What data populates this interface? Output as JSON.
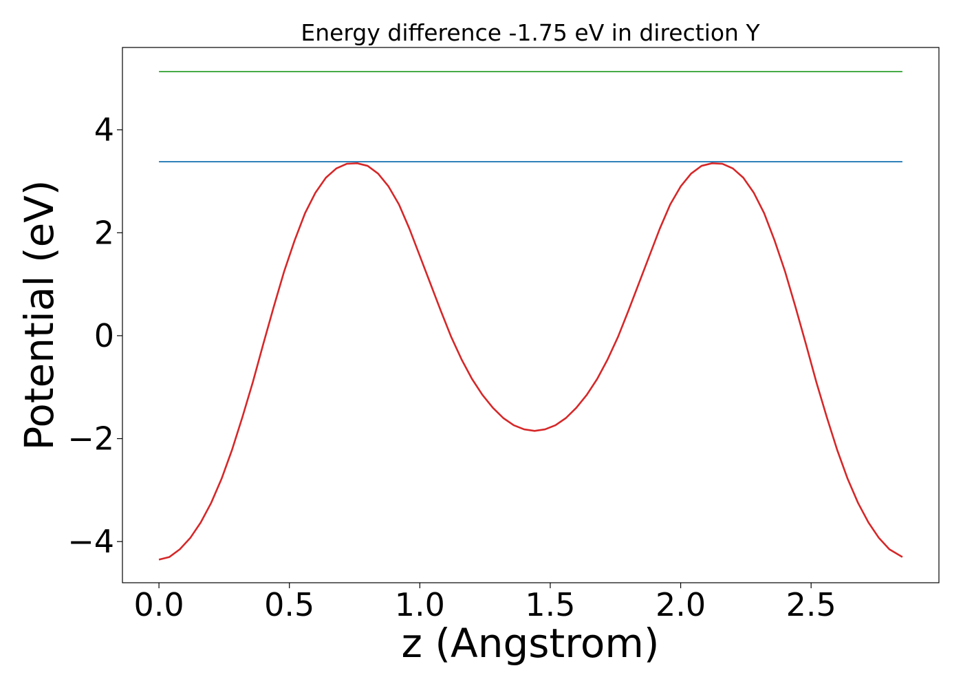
{
  "chart_data": {
    "type": "line",
    "title": "Energy difference -1.75 eV in direction Y",
    "xlabel": "z (Angstrom)",
    "ylabel": "Potential (eV)",
    "xlim": [
      -0.14,
      2.99
    ],
    "ylim": [
      -4.8,
      5.6
    ],
    "xticks": [
      0.0,
      0.5,
      1.0,
      1.5,
      2.0,
      2.5
    ],
    "xtick_labels": [
      "0.0",
      "0.5",
      "1.0",
      "1.5",
      "2.0",
      "2.5"
    ],
    "yticks": [
      -4,
      -2,
      0,
      2,
      4
    ],
    "ytick_labels": [
      "−4",
      "−2",
      "0",
      "2",
      "4"
    ],
    "grid": false,
    "legend": "none",
    "series": [
      {
        "color": "#d62728",
        "x": [
          0.0,
          0.04,
          0.08,
          0.12,
          0.16,
          0.2,
          0.24,
          0.28,
          0.32,
          0.36,
          0.4,
          0.44,
          0.48,
          0.52,
          0.56,
          0.6,
          0.64,
          0.68,
          0.72,
          0.76,
          0.8,
          0.84,
          0.88,
          0.92,
          0.96,
          1.0,
          1.04,
          1.08,
          1.12,
          1.16,
          1.2,
          1.24,
          1.28,
          1.32,
          1.36,
          1.4,
          1.44,
          1.48,
          1.52,
          1.56,
          1.6,
          1.64,
          1.68,
          1.72,
          1.76,
          1.8,
          1.84,
          1.88,
          1.92,
          1.96,
          2.0,
          2.04,
          2.08,
          2.12,
          2.16,
          2.2,
          2.24,
          2.28,
          2.32,
          2.36,
          2.4,
          2.44,
          2.48,
          2.52,
          2.56,
          2.6,
          2.64,
          2.68,
          2.72,
          2.76,
          2.8,
          2.85
        ],
        "y": [
          -4.35,
          -4.3,
          -4.15,
          -3.93,
          -3.63,
          -3.25,
          -2.78,
          -2.22,
          -1.58,
          -0.9,
          -0.16,
          0.56,
          1.25,
          1.85,
          2.38,
          2.78,
          3.07,
          3.25,
          3.34,
          3.35,
          3.3,
          3.15,
          2.9,
          2.55,
          2.08,
          1.55,
          1.02,
          0.49,
          -0.02,
          -0.46,
          -0.84,
          -1.15,
          -1.4,
          -1.6,
          -1.74,
          -1.82,
          -1.85,
          -1.82,
          -1.74,
          -1.6,
          -1.4,
          -1.15,
          -0.84,
          -0.46,
          -0.02,
          0.49,
          1.02,
          1.55,
          2.08,
          2.55,
          2.9,
          3.15,
          3.3,
          3.35,
          3.34,
          3.25,
          3.07,
          2.78,
          2.38,
          1.85,
          1.25,
          0.56,
          -0.16,
          -0.9,
          -1.58,
          -2.22,
          -2.78,
          -3.25,
          -3.63,
          -3.93,
          -4.15,
          -4.3
        ]
      },
      {
        "color": "#1f77b4",
        "x": [
          0.0,
          2.85
        ],
        "y": [
          3.38,
          3.38
        ]
      },
      {
        "color": "#2ca02c",
        "x": [
          0.0,
          2.85
        ],
        "y": [
          5.13,
          5.13
        ]
      }
    ]
  }
}
